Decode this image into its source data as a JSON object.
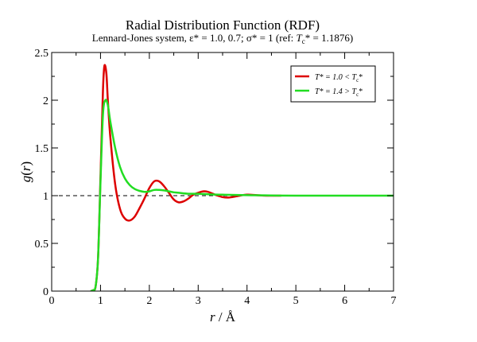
{
  "chart_data": {
    "type": "line",
    "title": "Radial Distribution Function (RDF)",
    "subtitle": {
      "prefix": "Lennard-Jones system, ε* = 1.0, 0.7; σ* = 1 (ref: ",
      "tc_sym": "T",
      "tc_sub": "c",
      "tc_rest": "* = 1.1876)"
    },
    "xlabel": {
      "var": "r",
      "rest": " / Å"
    },
    "ylabel": {
      "var": "g",
      "open": "(",
      "arg": "r",
      "close": ")"
    },
    "xlim": [
      0,
      7
    ],
    "ylim": [
      0,
      2.5
    ],
    "xticks": [
      "0",
      "1",
      "2",
      "3",
      "4",
      "5",
      "6",
      "7"
    ],
    "yticks": [
      "0",
      "0.5",
      "1",
      "1.5",
      "2",
      "2.5"
    ],
    "reference_line": {
      "y": 1,
      "style": "dashed",
      "color": "#000000"
    },
    "legend": {
      "placement": "top-right"
    },
    "series": [
      {
        "name": "T* = 1.0 < Tc*",
        "legend_label": {
          "main": "T* = 1.0 < T",
          "sub": "c",
          "tail": "*"
        },
        "color": "#dd0000",
        "x_range": [
          0.8,
          4.7
        ],
        "points": [
          [
            0.8,
            0
          ],
          [
            0.85,
            0.01
          ],
          [
            0.9,
            0.05
          ],
          [
            0.95,
            0.35
          ],
          [
            1.0,
            1.2
          ],
          [
            1.05,
            2.1
          ],
          [
            1.08,
            2.36
          ],
          [
            1.12,
            2.28
          ],
          [
            1.15,
            2.0
          ],
          [
            1.2,
            1.62
          ],
          [
            1.3,
            1.12
          ],
          [
            1.4,
            0.86
          ],
          [
            1.5,
            0.76
          ],
          [
            1.6,
            0.74
          ],
          [
            1.7,
            0.78
          ],
          [
            1.8,
            0.87
          ],
          [
            1.9,
            0.97
          ],
          [
            2.0,
            1.08
          ],
          [
            2.1,
            1.15
          ],
          [
            2.2,
            1.15
          ],
          [
            2.3,
            1.1
          ],
          [
            2.4,
            1.03
          ],
          [
            2.5,
            0.96
          ],
          [
            2.6,
            0.93
          ],
          [
            2.7,
            0.94
          ],
          [
            2.8,
            0.97
          ],
          [
            2.9,
            1.01
          ],
          [
            3.0,
            1.03
          ],
          [
            3.1,
            1.045
          ],
          [
            3.2,
            1.04
          ],
          [
            3.3,
            1.02
          ],
          [
            3.4,
            1.0
          ],
          [
            3.5,
            0.985
          ],
          [
            3.6,
            0.98
          ],
          [
            3.7,
            0.985
          ],
          [
            3.8,
            0.995
          ],
          [
            4.0,
            1.01
          ],
          [
            4.2,
            1.005
          ],
          [
            4.4,
            1.0
          ],
          [
            4.7,
            1.0
          ]
        ]
      },
      {
        "name": "T* = 1.4 > Tc*",
        "legend_label": {
          "main": "T* = 1.4 > T",
          "sub": "c",
          "tail": "*"
        },
        "color": "#22dd22",
        "x_range": [
          0.8,
          7
        ],
        "points": [
          [
            0.8,
            0
          ],
          [
            0.85,
            0.01
          ],
          [
            0.9,
            0.05
          ],
          [
            0.95,
            0.35
          ],
          [
            1.0,
            1.15
          ],
          [
            1.05,
            1.85
          ],
          [
            1.1,
            2.0
          ],
          [
            1.15,
            1.95
          ],
          [
            1.2,
            1.78
          ],
          [
            1.3,
            1.5
          ],
          [
            1.4,
            1.3
          ],
          [
            1.5,
            1.18
          ],
          [
            1.6,
            1.11
          ],
          [
            1.7,
            1.07
          ],
          [
            1.8,
            1.05
          ],
          [
            1.9,
            1.04
          ],
          [
            2.0,
            1.045
          ],
          [
            2.1,
            1.06
          ],
          [
            2.2,
            1.06
          ],
          [
            2.3,
            1.055
          ],
          [
            2.4,
            1.045
          ],
          [
            2.5,
            1.035
          ],
          [
            2.6,
            1.03
          ],
          [
            2.8,
            1.02
          ],
          [
            3.0,
            1.02
          ],
          [
            3.2,
            1.015
          ],
          [
            3.5,
            1.01
          ],
          [
            4.0,
            1.005
          ],
          [
            5.0,
            1.0
          ],
          [
            7.0,
            1.0
          ]
        ]
      }
    ]
  }
}
